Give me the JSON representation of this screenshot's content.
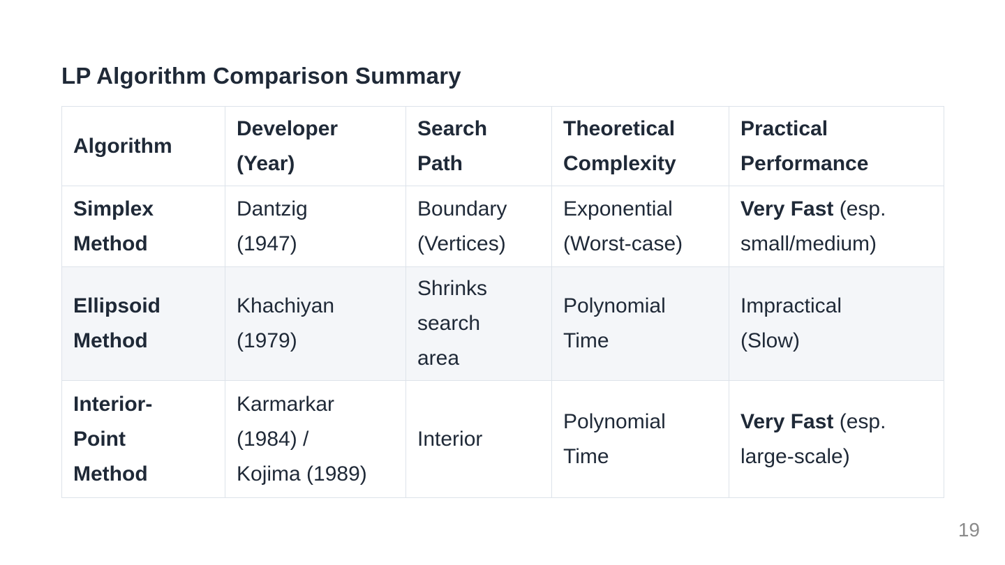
{
  "title": "LP Algorithm Comparison Summary",
  "page_number": "19",
  "colors": {
    "text": "#1f2937",
    "table_border": "#dde3ea",
    "alt_row_background": "#f4f6f9",
    "page_number_gray": "#8b8b8b",
    "background": "#ffffff"
  },
  "table": {
    "headers": [
      "Algorithm",
      "Developer\n(Year)",
      "Search\nPath",
      "Theoretical\nComplexity",
      "Practical\nPerformance"
    ],
    "rows": [
      {
        "algorithm": "Simplex\nMethod",
        "developer": "Dantzig\n(1947)",
        "search_path": "Boundary\n(Vertices)",
        "complexity": "Exponential\n(Worst-case)",
        "performance_bold": "Very Fast",
        "performance_rest": " (esp.\nsmall/medium)"
      },
      {
        "algorithm": "Ellipsoid\nMethod",
        "developer": "Khachiyan\n(1979)",
        "search_path": "Shrinks\nsearch\narea",
        "complexity": "Polynomial\nTime",
        "performance_bold": "",
        "performance_rest": "Impractical\n(Slow)"
      },
      {
        "algorithm": "Interior-\nPoint\nMethod",
        "developer": "Karmarkar\n(1984) /\nKojima (1989)",
        "search_path": "Interior",
        "complexity": "Polynomial\nTime",
        "performance_bold": "Very Fast",
        "performance_rest": " (esp.\nlarge-scale)"
      }
    ]
  }
}
